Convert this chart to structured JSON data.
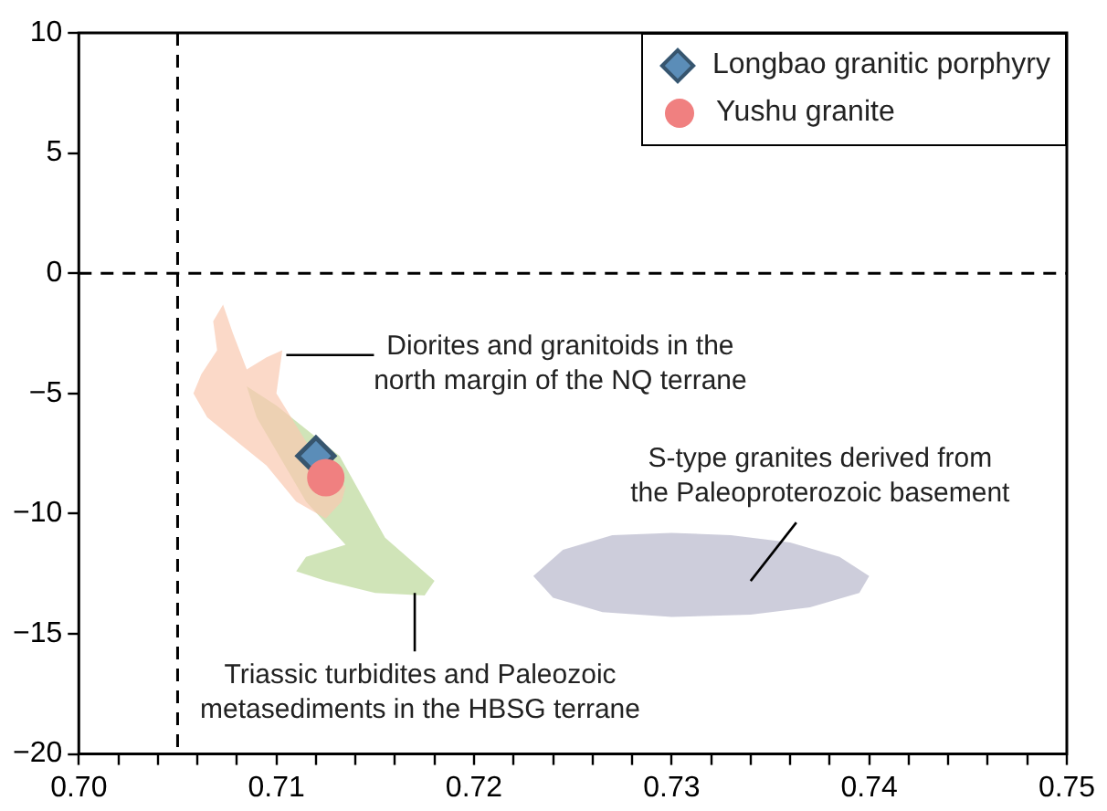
{
  "chart_data": {
    "type": "scatter",
    "xlim": [
      0.7,
      0.75
    ],
    "xticks": [
      {
        "value": 0.7,
        "label": "0.70"
      },
      {
        "value": 0.702,
        "label": null
      },
      {
        "value": 0.704,
        "label": null
      },
      {
        "value": 0.706,
        "label": null
      },
      {
        "value": 0.708,
        "label": null
      },
      0.71,
      {
        "value": 0.712,
        "label": null
      },
      {
        "value": 0.714,
        "label": null
      },
      {
        "value": 0.716,
        "label": null
      },
      {
        "value": 0.718,
        "label": null
      },
      0.72,
      {
        "value": 0.722,
        "label": null
      },
      {
        "value": 0.724,
        "label": null
      },
      {
        "value": 0.726,
        "label": null
      },
      {
        "value": 0.728,
        "label": null
      },
      0.73,
      {
        "value": 0.732,
        "label": null
      },
      {
        "value": 0.734,
        "label": null
      },
      {
        "value": 0.736,
        "label": null
      },
      {
        "value": 0.738,
        "label": null
      },
      0.74,
      {
        "value": 0.742,
        "label": null
      },
      {
        "value": 0.744,
        "label": null
      },
      {
        "value": 0.746,
        "label": null
      },
      {
        "value": 0.748,
        "label": null
      },
      0.75
    ],
    "ylim": [
      -20,
      10
    ],
    "yticks": [
      -20,
      -15,
      -10,
      -5,
      0,
      5,
      10
    ],
    "grid": false,
    "legend": "top right",
    "series": [
      {
        "type": "area",
        "color": "#f9c9b0",
        "x": [
          0.7073,
          0.7078,
          0.7085,
          0.7095,
          0.7103,
          0.71,
          0.7115,
          0.7135,
          0.7133,
          0.7125,
          0.711,
          0.7095,
          0.708,
          0.7065,
          0.7058,
          0.7062,
          0.707,
          0.7068
        ],
        "values": [
          -1.3,
          -2.5,
          -4.0,
          -3.5,
          -3.2,
          -5.0,
          -7.0,
          -8.9,
          -9.5,
          -10.2,
          -9.5,
          -8.0,
          -7.0,
          -6.0,
          -5.0,
          -4.2,
          -3.2,
          -2.0
        ]
      },
      {
        "type": "area",
        "color": "#bcd89a",
        "x": [
          0.7085,
          0.71,
          0.7132,
          0.7155,
          0.718,
          0.7175,
          0.715,
          0.7125,
          0.711,
          0.7115,
          0.7135,
          0.7115,
          0.709
        ],
        "values": [
          -4.7,
          -5.5,
          -7.6,
          -11.0,
          -12.8,
          -13.4,
          -13.3,
          -12.8,
          -12.4,
          -11.8,
          -11.3,
          -9.5,
          -6.0
        ]
      },
      {
        "type": "area",
        "color": "#b8b8cc",
        "x": [
          0.723,
          0.7245,
          0.727,
          0.73,
          0.733,
          0.736,
          0.7385,
          0.74,
          0.7395,
          0.737,
          0.734,
          0.73,
          0.7265,
          0.724
        ],
        "values": [
          -12.6,
          -11.5,
          -10.9,
          -10.8,
          -10.9,
          -11.2,
          -11.8,
          -12.6,
          -13.3,
          -13.9,
          -14.2,
          -14.3,
          -14.1,
          -13.5
        ]
      },
      {
        "name": "Yushu granite",
        "marker": "circle",
        "color": "#f08080",
        "x": [
          0.7125
        ],
        "values": [
          -8.5
        ]
      },
      {
        "name": "Longbao granitic porphyry",
        "marker": "diamond",
        "color": "#5b8db8",
        "x": [
          0.712
        ],
        "values": [
          -7.6
        ]
      }
    ],
    "ref_lines": [
      {
        "axis": "x",
        "value": 0.705,
        "line_style": "dashed",
        "color": "#000000"
      },
      {
        "axis": "y",
        "value": 0,
        "line_style": "dashed",
        "color": "#000000"
      }
    ],
    "annotations": [
      {
        "text": "Diorites and granitoids in the\nnorth margin of the NQ  terrane",
        "x": 0.7105,
        "y": -3.4
      },
      {
        "text": "Triassic turbidites and Paleozoic\nmetasediments in the HBSG terrane",
        "x": 0.717,
        "y": -13.3
      },
      "S-type granites derived from\nthe Paleoproterozoic basement"
    ]
  }
}
